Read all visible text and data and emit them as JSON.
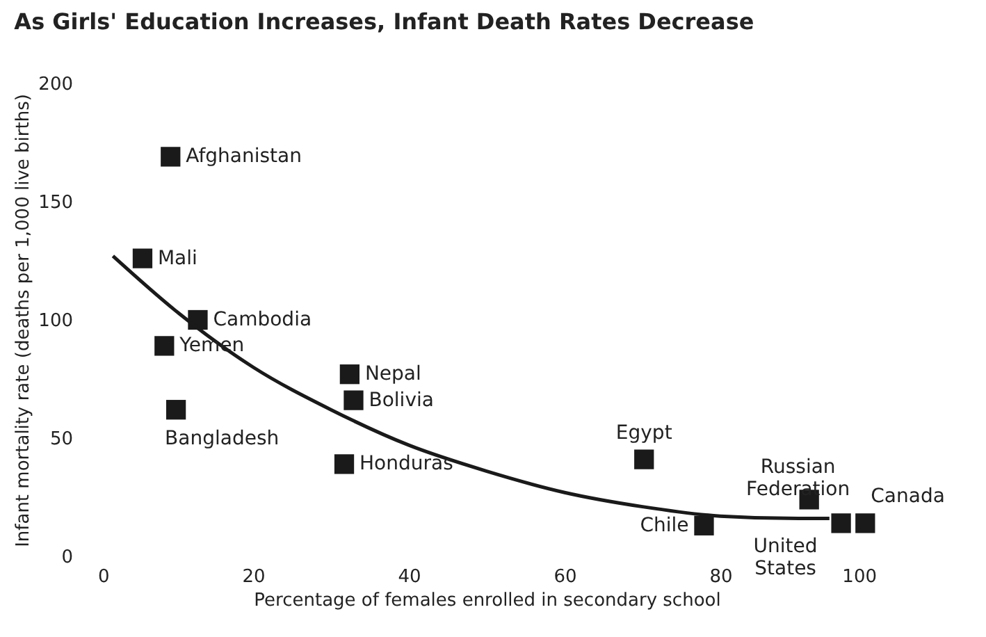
{
  "chart_data": {
    "type": "scatter",
    "title": "As Girls' Education Increases, Infant Death Rates Decrease",
    "xlabel": "Percentage of females enrolled in secondary school",
    "ylabel": "Infant mortality rate (deaths per 1,000 live births)",
    "xlim": [
      0,
      100
    ],
    "ylim": [
      0,
      200
    ],
    "xticks": [
      0,
      20,
      40,
      60,
      80,
      100
    ],
    "yticks": [
      0,
      50,
      100,
      150,
      200
    ],
    "series": [
      {
        "color": "#1a1a1a",
        "marker": "square",
        "x": [
          9.4,
          5.8,
          12.9,
          8.6,
          10.1,
          32.4,
          32.9,
          31.7,
          70.2,
          77.9,
          91.4,
          95.5,
          98.6
        ],
        "values": [
          169,
          126,
          100,
          89,
          62,
          77,
          66,
          39,
          41,
          13,
          24,
          14,
          14
        ]
      },
      {
        "type": "line",
        "marker": "none",
        "color": "#1a1a1a",
        "x": [
          2,
          10,
          20,
          30,
          40,
          50,
          60,
          70,
          80,
          90,
          94
        ],
        "values": [
          127,
          104,
          80,
          62,
          47,
          36,
          27,
          21,
          17,
          16,
          16
        ]
      }
    ],
    "annotations": [
      {
        "text": "Afghanistan",
        "x": 9.4,
        "y": 169
      },
      {
        "text": "Mali",
        "x": 5.8,
        "y": 126
      },
      {
        "text": "Cambodia",
        "x": 12.9,
        "y": 100
      },
      {
        "text": "Yemen",
        "x": 8.6,
        "y": 89
      },
      {
        "text": "Bangladesh",
        "x": 10.1,
        "y": 62
      },
      {
        "text": "Nepal",
        "x": 32.4,
        "y": 77
      },
      {
        "text": "Bolivia",
        "x": 32.9,
        "y": 66
      },
      {
        "text": "Honduras",
        "x": 31.7,
        "y": 39
      },
      {
        "text": "Egypt",
        "x": 70.2,
        "y": 41
      },
      {
        "text": "Chile",
        "x": 77.9,
        "y": 13
      },
      {
        "text": "Russian Federation",
        "x": 91.4,
        "y": 24
      },
      {
        "text": "United States",
        "x": 95.5,
        "y": 14
      },
      {
        "text": "Canada",
        "x": 98.6,
        "y": 14
      }
    ]
  }
}
